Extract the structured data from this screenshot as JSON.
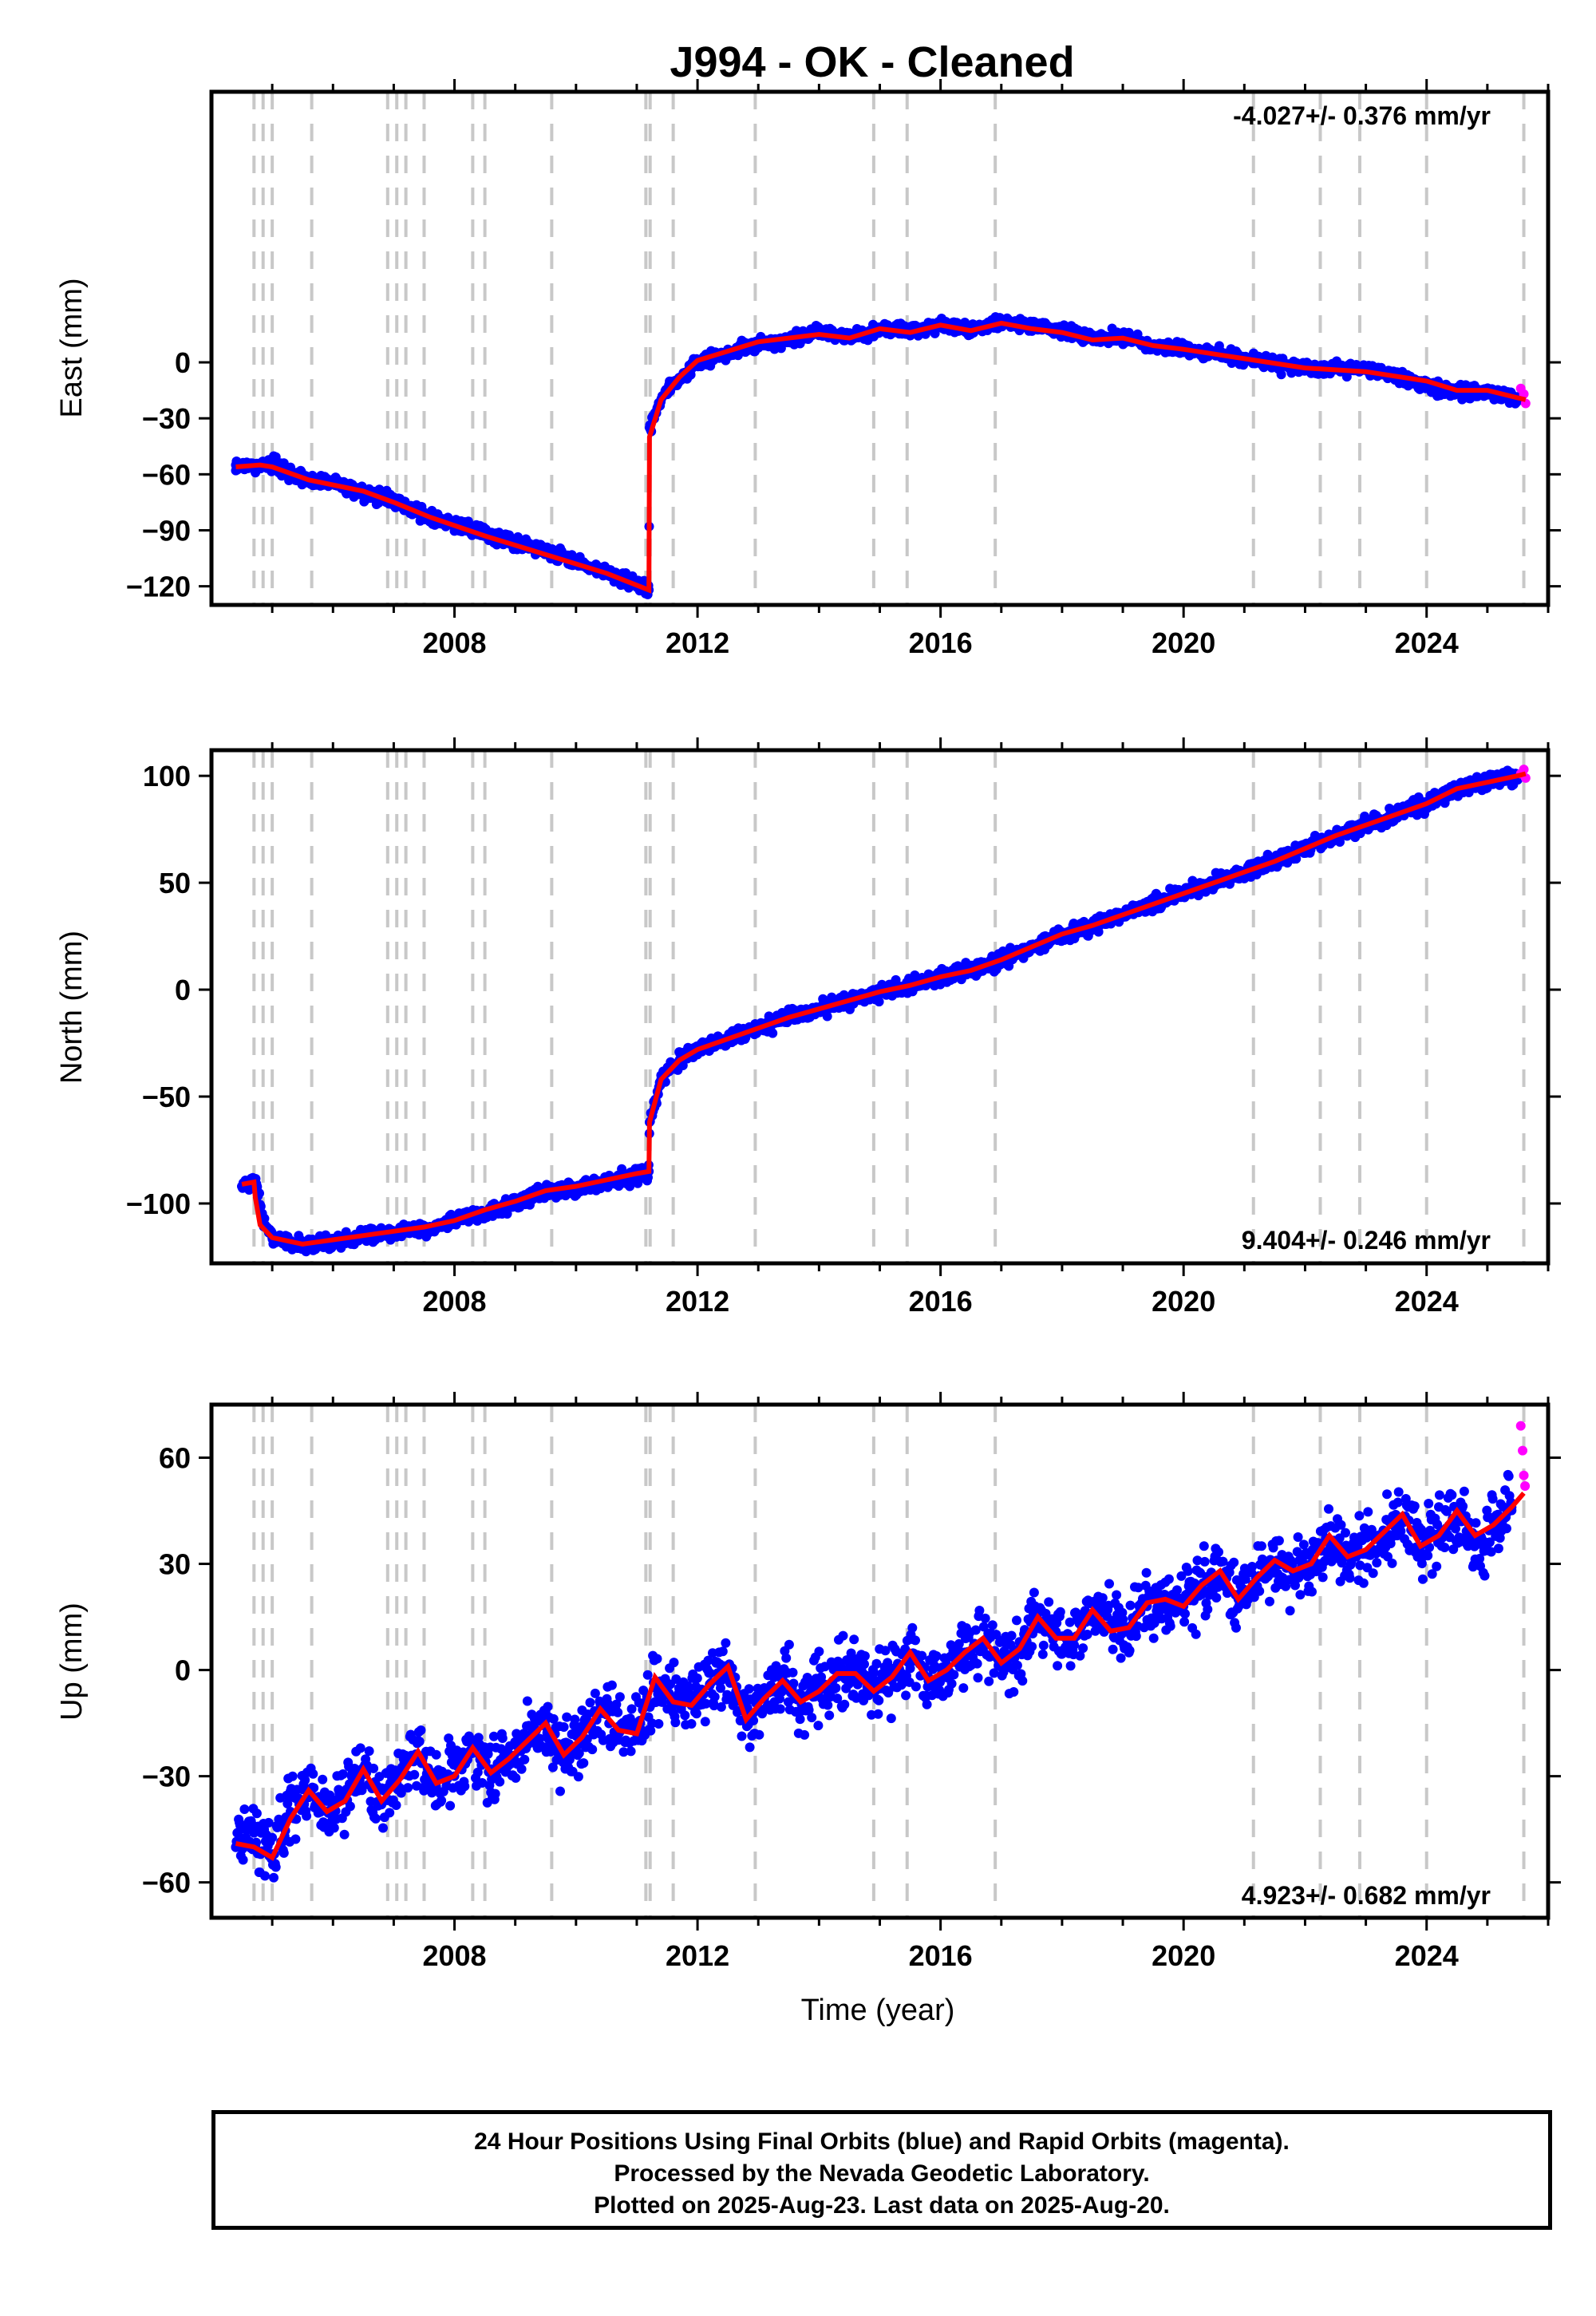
{
  "title": "J994  - OK - Cleaned",
  "xlabel": "Time (year)",
  "caption": [
    "24 Hour Positions Using Final Orbits (blue) and Rapid Orbits (magenta).",
    "Processed by the Nevada Geodetic Laboratory.",
    "Plotted on 2025-Aug-23. Last data on 2025-Aug-20."
  ],
  "colors": {
    "final": "#0000ff",
    "rapid": "#ff00ff",
    "model": "#ff0000",
    "events": "#c8c8c8"
  },
  "event_years": [
    2004.7,
    2004.85,
    2005.0,
    2005.65,
    2006.9,
    2007.05,
    2007.2,
    2007.5,
    2008.3,
    2008.5,
    2009.6,
    2011.15,
    2011.22,
    2011.6,
    2012.95,
    2014.9,
    2015.45,
    2016.9,
    2021.15,
    2022.25,
    2022.9,
    2024.0,
    2025.6
  ],
  "chart_data": [
    {
      "type": "scatter",
      "ylabel": "East (mm)",
      "rate_label": "-4.027+/- 0.376 mm/yr",
      "rate_position": "top-right",
      "xlim": [
        2004.0,
        2026.0
      ],
      "ylim": [
        -130,
        145
      ],
      "x_ticks": [
        "2008",
        "2012",
        "2016",
        "2020",
        "2024"
      ],
      "y_ticks": [
        "0",
        "−30",
        "−60",
        "−90",
        "−120"
      ],
      "series": [
        {
          "name": "final",
          "x": [
            2004.4,
            2004.6,
            2004.8,
            2005.0,
            2005.5,
            2006.0,
            2006.5,
            2007.0,
            2007.5,
            2008.0,
            2008.5,
            2009.0,
            2009.5,
            2010.0,
            2010.5,
            2011.0,
            2011.2,
            2011.21,
            2011.4,
            2011.6,
            2012.0,
            2012.5,
            2013.0,
            2013.5,
            2014.0,
            2014.5,
            2015.0,
            2015.5,
            2016.0,
            2016.5,
            2017.0,
            2017.5,
            2018.0,
            2018.5,
            2019.0,
            2019.5,
            2020.0,
            2020.5,
            2021.0,
            2021.5,
            2022.0,
            2022.5,
            2023.0,
            2023.5,
            2024.0,
            2024.5,
            2025.0,
            2025.5
          ],
          "y": [
            -55,
            -56,
            -55,
            -54,
            -62,
            -65,
            -70,
            -74,
            -82,
            -87,
            -92,
            -97,
            -101,
            -107,
            -113,
            -119,
            -122,
            -35,
            -20,
            -12,
            0,
            5,
            10,
            12,
            16,
            14,
            18,
            17,
            20,
            18,
            22,
            19,
            17,
            13,
            14,
            9,
            7,
            5,
            2,
            -1,
            -4,
            -3,
            -3,
            -8,
            -12,
            -16,
            -16,
            -20
          ]
        },
        {
          "name": "rapid",
          "x": [
            2025.55,
            2025.6,
            2025.63
          ],
          "y": [
            -14,
            -17,
            -22
          ]
        }
      ],
      "model": {
        "x": [
          2004.4,
          2004.8,
          2005.0,
          2005.6,
          2006.5,
          2007.0,
          2007.6,
          2008.5,
          2009.5,
          2010.5,
          2011.2,
          2011.21,
          2011.4,
          2011.7,
          2012.0,
          2012.5,
          2013.0,
          2014.0,
          2014.5,
          2015.0,
          2015.5,
          2016.0,
          2016.5,
          2017.0,
          2017.5,
          2018.0,
          2018.5,
          2019.0,
          2019.5,
          2020.0,
          2021.0,
          2022.0,
          2023.0,
          2024.0,
          2024.5,
          2025.0,
          2025.5,
          2025.63
        ],
        "y": [
          -56,
          -55,
          -56,
          -63,
          -69,
          -75,
          -83,
          -93,
          -103,
          -113,
          -122,
          -40,
          -20,
          -8,
          1,
          6,
          11,
          15,
          13,
          18,
          16,
          20,
          17,
          21,
          18,
          16,
          12,
          13,
          9,
          7,
          2,
          -3,
          -5,
          -10,
          -15,
          -15,
          -19,
          -20
        ]
      }
    },
    {
      "type": "scatter",
      "ylabel": "North (mm)",
      "rate_label": "9.404+/- 0.246 mm/yr",
      "rate_position": "bottom-right",
      "xlim": [
        2004.0,
        2026.0
      ],
      "ylim": [
        -128,
        112
      ],
      "x_ticks": [
        "2008",
        "2012",
        "2016",
        "2020",
        "2024"
      ],
      "y_ticks": [
        "100",
        "50",
        "0",
        "−50",
        "−100"
      ],
      "series": [
        {
          "name": "final",
          "x": [
            2004.5,
            2004.7,
            2004.75,
            2004.85,
            2005.0,
            2005.5,
            2006.0,
            2006.5,
            2007.0,
            2007.5,
            2008.0,
            2008.5,
            2009.0,
            2009.5,
            2010.0,
            2010.5,
            2011.0,
            2011.2,
            2011.21,
            2011.4,
            2011.7,
            2012.0,
            2012.5,
            2013.0,
            2013.5,
            2014.0,
            2014.5,
            2015.0,
            2015.5,
            2016.0,
            2016.5,
            2017.0,
            2017.5,
            2018.0,
            2018.5,
            2019.0,
            2019.5,
            2020.0,
            2020.5,
            2021.0,
            2021.5,
            2022.0,
            2022.5,
            2023.0,
            2023.5,
            2024.0,
            2024.5,
            2025.0,
            2025.5
          ],
          "y": [
            -92,
            -90,
            -92,
            -108,
            -116,
            -120,
            -118,
            -115,
            -114,
            -112,
            -108,
            -104,
            -100,
            -95,
            -93,
            -90,
            -87,
            -85,
            -62,
            -42,
            -33,
            -28,
            -23,
            -18,
            -13,
            -9,
            -5,
            -1,
            2,
            6,
            9,
            14,
            20,
            26,
            30,
            35,
            40,
            45,
            50,
            55,
            60,
            66,
            72,
            77,
            82,
            87,
            94,
            97,
            100
          ]
        },
        {
          "name": "rapid",
          "x": [
            2025.55,
            2025.6,
            2025.63
          ],
          "y": [
            101,
            103,
            99
          ]
        }
      ],
      "model": {
        "x": [
          2004.5,
          2004.7,
          2004.72,
          2004.8,
          2005.0,
          2005.5,
          2006.0,
          2006.5,
          2007.0,
          2007.5,
          2008.0,
          2008.5,
          2009.0,
          2009.5,
          2010.0,
          2010.5,
          2011.0,
          2011.2,
          2011.21,
          2011.4,
          2011.7,
          2012.0,
          2012.5,
          2013.0,
          2013.5,
          2014.0,
          2014.5,
          2015.0,
          2015.5,
          2016.0,
          2016.5,
          2017.0,
          2017.5,
          2018.0,
          2018.5,
          2019.0,
          2019.5,
          2020.0,
          2020.5,
          2021.0,
          2021.5,
          2022.0,
          2022.5,
          2023.0,
          2023.5,
          2024.0,
          2024.5,
          2025.0,
          2025.5,
          2025.63
        ],
        "y": [
          -91,
          -90,
          -97,
          -110,
          -116,
          -119,
          -117,
          -115,
          -113,
          -111,
          -108,
          -103,
          -99,
          -94,
          -92,
          -89,
          -86,
          -85,
          -62,
          -42,
          -33,
          -28,
          -23,
          -18,
          -13,
          -9,
          -5,
          -1,
          2,
          6,
          9,
          14,
          20,
          26,
          30,
          35,
          40,
          45,
          50,
          55,
          60,
          66,
          72,
          77,
          82,
          87,
          94,
          97,
          100,
          101
        ]
      }
    },
    {
      "type": "scatter",
      "ylabel": "Up (mm)",
      "rate_label": "4.923+/- 0.682 mm/yr",
      "rate_position": "bottom-right",
      "xlim": [
        2004.0,
        2026.0
      ],
      "ylim": [
        -70,
        75
      ],
      "x_ticks": [
        "2008",
        "2012",
        "2016",
        "2020",
        "2024"
      ],
      "y_ticks": [
        "60",
        "30",
        "0",
        "−30",
        "−60"
      ],
      "series": [
        {
          "name": "final",
          "x": [
            2004.4,
            2004.7,
            2005.0,
            2005.3,
            2005.6,
            2005.9,
            2006.2,
            2006.5,
            2006.8,
            2007.1,
            2007.4,
            2007.7,
            2008.0,
            2008.3,
            2008.6,
            2008.9,
            2009.2,
            2009.5,
            2009.8,
            2010.1,
            2010.4,
            2010.7,
            2011.0,
            2011.3,
            2011.6,
            2011.9,
            2012.2,
            2012.5,
            2012.8,
            2013.1,
            2013.4,
            2013.7,
            2014.0,
            2014.3,
            2014.6,
            2014.9,
            2015.2,
            2015.5,
            2015.8,
            2016.1,
            2016.4,
            2016.7,
            2017.0,
            2017.3,
            2017.6,
            2017.9,
            2018.2,
            2018.5,
            2018.8,
            2019.1,
            2019.4,
            2019.7,
            2020.0,
            2020.3,
            2020.6,
            2020.9,
            2021.2,
            2021.5,
            2021.8,
            2022.1,
            2022.4,
            2022.7,
            2023.0,
            2023.3,
            2023.6,
            2023.9,
            2024.2,
            2024.5,
            2024.8,
            2025.1,
            2025.4
          ],
          "y": [
            -50,
            -46,
            -52,
            -40,
            -34,
            -40,
            -36,
            -28,
            -38,
            -30,
            -24,
            -33,
            -30,
            -22,
            -28,
            -25,
            -20,
            -16,
            -24,
            -18,
            -12,
            -16,
            -18,
            -5,
            -8,
            -10,
            -4,
            0,
            -14,
            -8,
            -3,
            -9,
            -6,
            -2,
            0,
            -5,
            -3,
            4,
            -2,
            -1,
            5,
            8,
            3,
            6,
            13,
            10,
            9,
            16,
            12,
            12,
            18,
            20,
            18,
            24,
            27,
            20,
            26,
            30,
            28,
            30,
            36,
            32,
            33,
            38,
            43,
            35,
            38,
            44,
            36,
            40,
            46
          ]
        },
        {
          "name": "rapid",
          "x": [
            2025.55,
            2025.58,
            2025.6,
            2025.62
          ],
          "y": [
            69,
            62,
            55,
            52
          ]
        }
      ],
      "model": {
        "x": [
          2004.4,
          2004.7,
          2005.0,
          2005.3,
          2005.6,
          2005.9,
          2006.2,
          2006.5,
          2006.8,
          2007.1,
          2007.4,
          2007.7,
          2008.0,
          2008.3,
          2008.6,
          2008.9,
          2009.2,
          2009.5,
          2009.8,
          2010.1,
          2010.4,
          2010.7,
          2011.0,
          2011.3,
          2011.6,
          2011.9,
          2012.2,
          2012.5,
          2012.8,
          2013.1,
          2013.4,
          2013.7,
          2014.0,
          2014.3,
          2014.6,
          2014.9,
          2015.2,
          2015.5,
          2015.8,
          2016.1,
          2016.4,
          2016.7,
          2017.0,
          2017.3,
          2017.6,
          2017.9,
          2018.2,
          2018.5,
          2018.8,
          2019.1,
          2019.4,
          2019.7,
          2020.0,
          2020.3,
          2020.6,
          2020.9,
          2021.2,
          2021.5,
          2021.8,
          2022.1,
          2022.4,
          2022.7,
          2023.0,
          2023.3,
          2023.6,
          2023.9,
          2024.2,
          2024.5,
          2024.8,
          2025.1,
          2025.4,
          2025.6
        ],
        "y": [
          -49,
          -50,
          -53,
          -42,
          -34,
          -40,
          -37,
          -28,
          -37,
          -31,
          -23,
          -32,
          -30,
          -22,
          -29,
          -25,
          -20,
          -15,
          -24,
          -19,
          -11,
          -17,
          -18,
          -2,
          -9,
          -10,
          -4,
          1,
          -14,
          -8,
          -3,
          -9,
          -6,
          -1,
          -1,
          -6,
          -2,
          5,
          -3,
          0,
          5,
          9,
          2,
          6,
          15,
          9,
          9,
          17,
          11,
          12,
          19,
          20,
          18,
          24,
          28,
          20,
          26,
          31,
          28,
          30,
          38,
          32,
          34,
          39,
          44,
          35,
          38,
          45,
          38,
          41,
          46,
          50
        ]
      }
    }
  ]
}
